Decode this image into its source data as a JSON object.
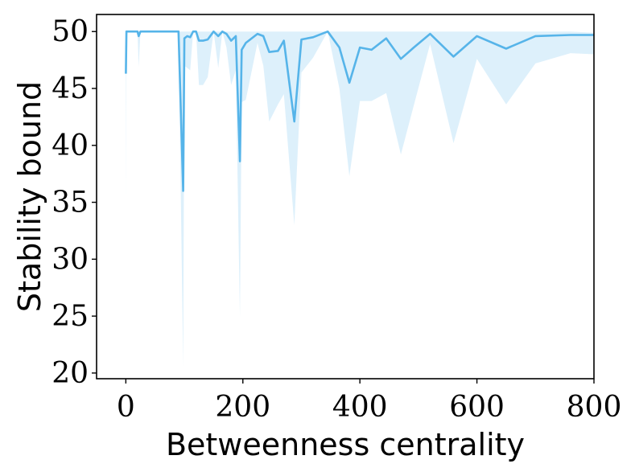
{
  "chart_data": {
    "type": "line",
    "title": "",
    "xlabel": "Betweenness centrality",
    "ylabel": "Stability bound",
    "xlim": [
      -50,
      800
    ],
    "ylim": [
      19.5,
      51.5
    ],
    "xticks": [
      0,
      200,
      400,
      600,
      800
    ],
    "yticks": [
      20,
      25,
      30,
      35,
      40,
      45,
      50
    ],
    "grid": false,
    "legend": "none",
    "colors": {
      "line": "#56b4e9",
      "band": "#56b4e9"
    },
    "series": [
      {
        "x": [
          0,
          1,
          5,
          10,
          20,
          22,
          25,
          30,
          40,
          60,
          90,
          98,
          100,
          105,
          110,
          115,
          120,
          125,
          132,
          140,
          150,
          158,
          165,
          172,
          180,
          188,
          195,
          198,
          205,
          225,
          235,
          245,
          260,
          270,
          288,
          300,
          320,
          345,
          365,
          382,
          400,
          420,
          445,
          470,
          492,
          520,
          560,
          600,
          650,
          700,
          760,
          800
        ],
        "y": [
          46.3,
          50,
          50,
          50,
          50,
          49.6,
          50,
          50,
          50,
          50,
          50,
          36.0,
          49.4,
          49.6,
          49.5,
          50,
          50,
          49.2,
          49.2,
          49.3,
          50,
          49.6,
          50,
          49.8,
          49.2,
          49.6,
          38.6,
          48.4,
          49.0,
          49.8,
          49.6,
          48.2,
          48.3,
          49.2,
          42.1,
          49.3,
          49.5,
          50,
          48.6,
          45.5,
          48.6,
          48.4,
          49.4,
          47.6,
          48.6,
          49.8,
          47.8,
          49.6,
          48.5,
          49.6,
          49.7,
          49.7
        ],
        "lower": [
          34.6,
          50,
          50,
          50,
          50,
          46.9,
          50,
          50,
          50,
          50,
          50,
          20.6,
          47.0,
          46.8,
          46.6,
          50,
          50,
          45.3,
          45.3,
          46.0,
          50,
          46.8,
          50,
          48.6,
          45.3,
          46.6,
          24.9,
          43.8,
          44.0,
          49.0,
          47.0,
          42.1,
          43.6,
          44.5,
          33.0,
          46.4,
          47.7,
          50,
          45.0,
          37.3,
          43.9,
          43.9,
          44.6,
          39.2,
          43.5,
          48.9,
          40.2,
          47.6,
          43.6,
          47.2,
          48.1,
          48.0
        ],
        "upper": [
          50,
          50,
          50,
          50,
          50,
          50,
          50,
          50,
          50,
          50,
          50,
          50,
          50,
          50,
          50,
          50,
          50,
          50,
          50,
          50,
          50,
          50,
          50,
          50,
          50,
          50,
          50,
          50,
          50,
          50,
          50,
          50,
          50,
          50,
          50,
          50,
          50,
          50,
          50,
          50,
          50,
          50,
          50,
          50,
          50,
          50,
          50,
          50,
          50,
          50,
          50,
          49.9
        ]
      }
    ]
  }
}
